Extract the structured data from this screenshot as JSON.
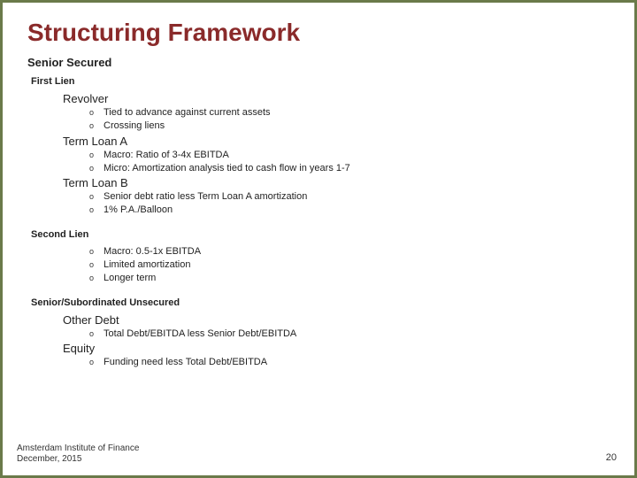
{
  "title": "Structuring Framework",
  "sections": [
    {
      "heading_level": "h2",
      "heading": "Senior Secured",
      "subheading": "First Lien",
      "items": [
        {
          "label": "Revolver",
          "sub": [
            "Tied to advance against current assets",
            "Crossing liens"
          ]
        },
        {
          "label": "Term Loan A",
          "sub": [
            "Macro: Ratio of 3-4x EBITDA",
            "Micro: Amortization analysis tied to cash flow in years 1-7"
          ]
        },
        {
          "label": "Term Loan B",
          "sub": [
            "Senior debt ratio less Term Loan A amortization",
            "1% P.A./Balloon"
          ]
        }
      ]
    },
    {
      "heading_level": "h3",
      "heading": "Second Lien",
      "items": [
        {
          "sub": [
            "Macro: 0.5-1x EBITDA",
            "Limited amortization",
            "Longer term"
          ]
        }
      ]
    },
    {
      "heading_level": "h3",
      "heading": "Senior/Subordinated Unsecured",
      "items": [
        {
          "label": "Other Debt",
          "sub": [
            "Total Debt/EBITDA less Senior Debt/EBITDA"
          ]
        },
        {
          "label": "Equity",
          "sub": [
            "Funding need less Total Debt/EBITDA"
          ]
        }
      ]
    }
  ],
  "footer": {
    "org": "Amsterdam Institute of Finance",
    "date": "December, 2015",
    "page": "20"
  },
  "bullets": {
    "level1": "",
    "level2": "o"
  },
  "colors": {
    "title": "#8a2a2a",
    "border": "#6a7a4a",
    "text": "#222222",
    "background": "#ffffff"
  }
}
